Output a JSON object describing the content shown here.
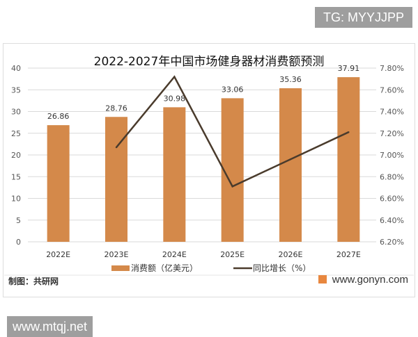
{
  "watermarks": {
    "tg": "TG: MYYJJPP",
    "site": "www.mtqj.net"
  },
  "footer": {
    "source": "制图：共研网",
    "url": "www.gonyn.com"
  },
  "colors": {
    "bar": "#d4894a",
    "line": "#4a3b2c",
    "grid": "#d9d9d9"
  },
  "chart_data": {
    "type": "bar+line",
    "title": "2022-2027年中国市场健身器材消费额预测",
    "categories": [
      "2022E",
      "2023E",
      "2024E",
      "2025E",
      "2026E",
      "2027E"
    ],
    "series": [
      {
        "name": "消费额（亿美元）",
        "type": "bar",
        "axis": "left",
        "values": [
          26.86,
          28.76,
          30.98,
          33.06,
          35.36,
          37.91
        ],
        "labels": [
          "26.86",
          "28.76",
          "30.98",
          "33.06",
          "35.36",
          "37.91"
        ]
      },
      {
        "name": "同比增长（%）",
        "type": "line",
        "axis": "right",
        "values": [
          null,
          7.07,
          7.72,
          6.71,
          6.96,
          7.21
        ]
      }
    ],
    "ylim": [
      0,
      40
    ],
    "yticks": [
      "0",
      "5",
      "10",
      "15",
      "20",
      "25",
      "30",
      "35",
      "40"
    ],
    "y2lim": [
      6.2,
      7.8
    ],
    "y2ticks": [
      "6.20%",
      "6.40%",
      "6.60%",
      "6.80%",
      "7.00%",
      "7.20%",
      "7.40%",
      "7.60%",
      "7.80%"
    ],
    "grid": true,
    "legend": "bottom"
  }
}
